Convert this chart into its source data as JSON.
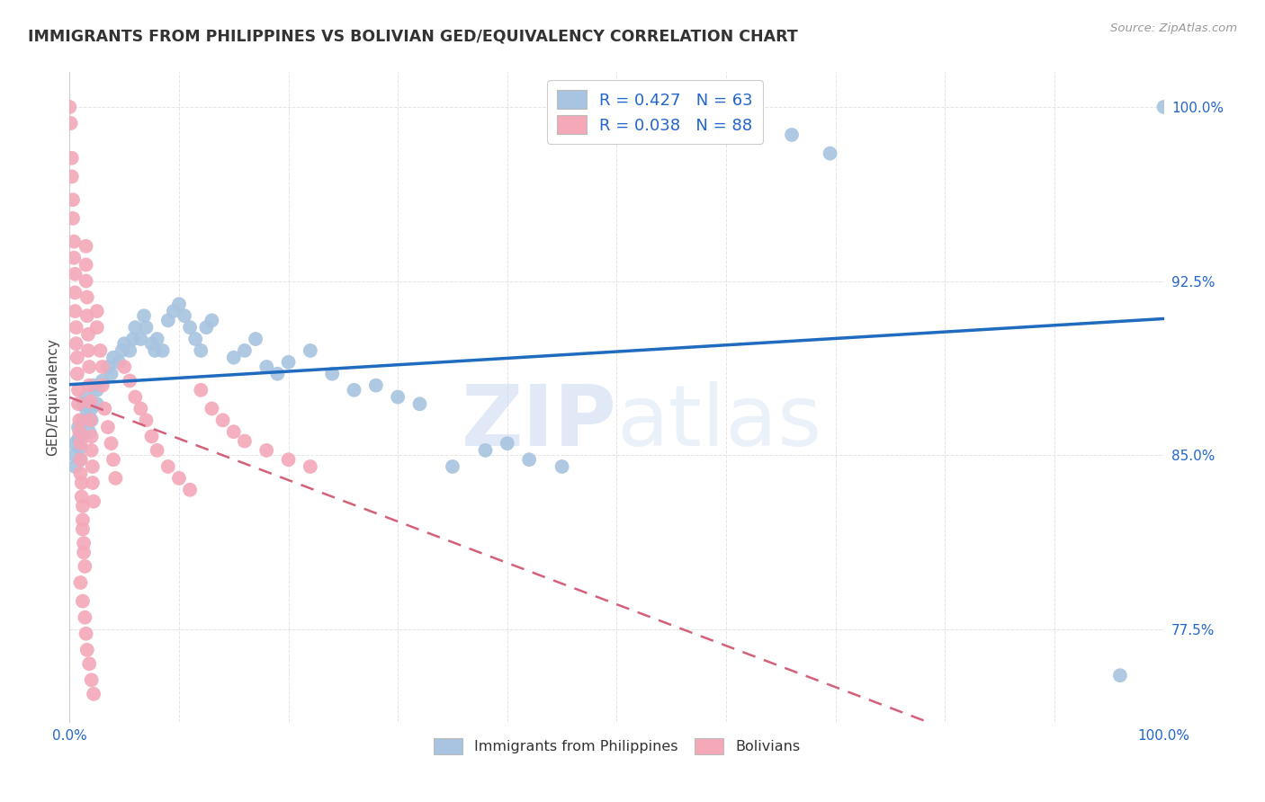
{
  "title": "IMMIGRANTS FROM PHILIPPINES VS BOLIVIAN GED/EQUIVALENCY CORRELATION CHART",
  "source": "Source: ZipAtlas.com",
  "ylabel": "GED/Equivalency",
  "xlim": [
    0.0,
    1.0
  ],
  "ylim": [
    0.735,
    1.015
  ],
  "yticks": [
    0.775,
    0.85,
    0.925,
    1.0
  ],
  "ytick_labels": [
    "77.5%",
    "85.0%",
    "92.5%",
    "100.0%"
  ],
  "xticks": [
    0.0,
    0.1,
    0.2,
    0.3,
    0.4,
    0.5,
    0.6,
    0.7,
    0.8,
    0.9,
    1.0
  ],
  "xtick_labels": [
    "0.0%",
    "",
    "",
    "",
    "",
    "",
    "",
    "",
    "",
    "",
    "100.0%"
  ],
  "blue_R": 0.427,
  "blue_N": 63,
  "pink_R": 0.038,
  "pink_N": 88,
  "blue_color": "#a8c4e0",
  "pink_color": "#f4a8b8",
  "blue_line_color": "#1e6bbf",
  "pink_line_color": "#d4607a",
  "watermark": "ZIPatlas",
  "background_color": "#ffffff",
  "grid_color": "#dddddd"
}
